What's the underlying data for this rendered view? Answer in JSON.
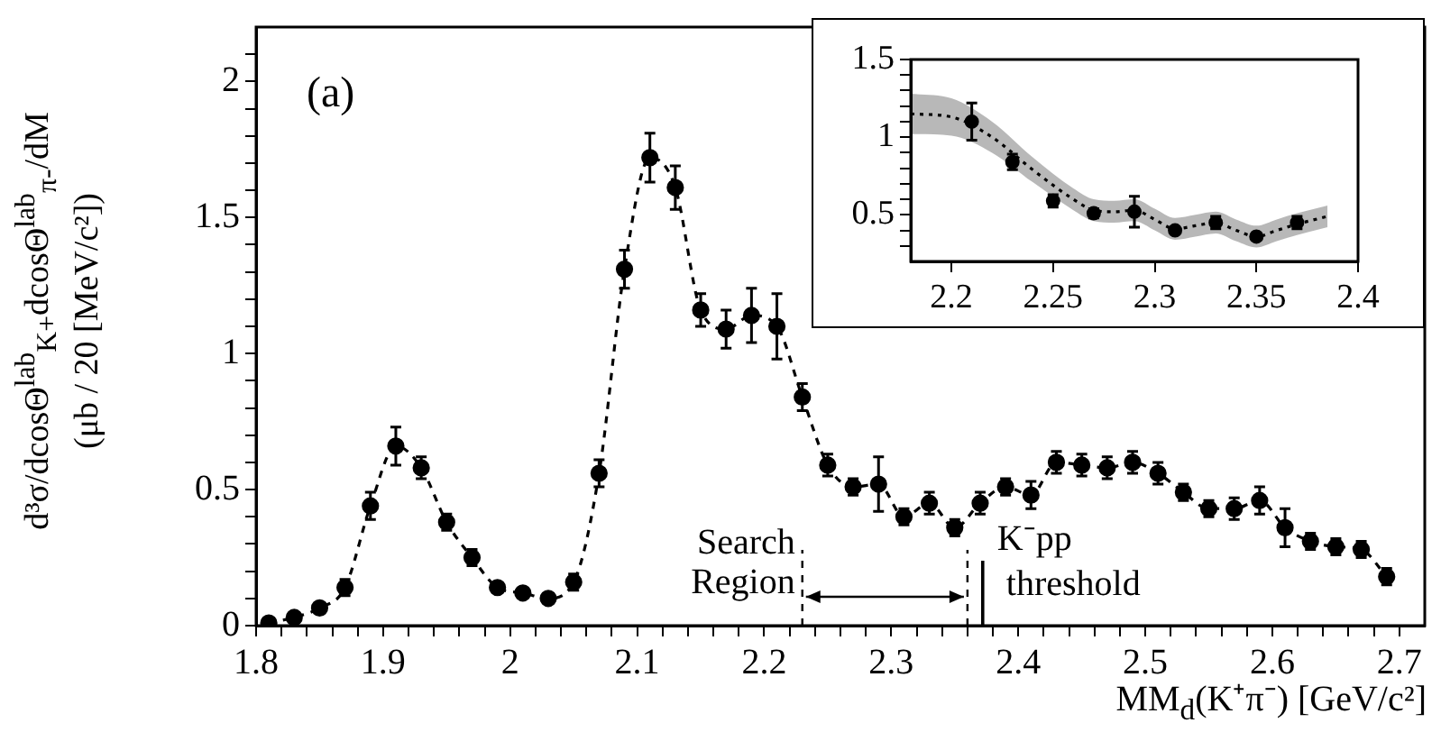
{
  "chart_data": [
    {
      "type": "line",
      "xlabel": "MM$_{d}$(K⁺π⁻) [GeV/c²]",
      "ylabel": "d³σ/dcosΘ$^{lab}$$_{K+}$dcosΘ$^{lab}$$_{π-}$/dM\n(μb / 20 [MeV/c²])",
      "annotations": [
        "(a)",
        "Search\nRegion"
      ],
      "x": [
        1.81,
        1.83,
        1.85,
        1.87,
        1.89,
        1.91,
        1.93,
        1.95,
        1.97,
        1.99,
        2.01,
        2.03,
        2.05,
        2.07,
        2.09,
        2.11,
        2.13,
        2.15,
        2.17,
        2.19,
        2.21,
        2.23,
        2.25,
        2.27,
        2.29,
        2.31,
        2.33,
        2.35,
        2.37,
        2.39,
        2.41,
        2.43,
        2.45,
        2.47,
        2.49,
        2.51,
        2.53,
        2.55,
        2.57,
        2.59,
        2.61,
        2.63,
        2.65,
        2.67,
        2.69
      ],
      "series": [
        {
          "color": "#000000",
          "values": [
            0.01,
            0.03,
            0.065,
            0.14,
            0.44,
            0.66,
            0.58,
            0.38,
            0.25,
            0.14,
            0.12,
            0.1,
            0.16,
            0.56,
            1.31,
            1.72,
            1.61,
            1.16,
            1.09,
            1.14,
            1.1,
            0.84,
            0.59,
            0.51,
            0.52,
            0.4,
            0.45,
            0.36,
            0.45,
            0.51,
            0.48,
            0.6,
            0.59,
            0.58,
            0.6,
            0.56,
            0.49,
            0.43,
            0.43,
            0.46,
            0.36,
            0.31,
            0.29,
            0.28,
            0.18
          ],
          "errors": [
            null,
            null,
            null,
            0.03,
            0.05,
            0.07,
            0.04,
            0.03,
            0.03,
            null,
            null,
            null,
            0.03,
            0.05,
            0.07,
            0.09,
            0.08,
            0.06,
            0.07,
            0.1,
            0.12,
            0.05,
            0.04,
            0.03,
            0.1,
            0.03,
            0.04,
            0.03,
            0.04,
            0.03,
            0.05,
            0.04,
            0.04,
            0.04,
            0.04,
            0.04,
            0.03,
            0.03,
            0.04,
            0.05,
            0.07,
            0.03,
            0.03,
            0.03,
            0.03
          ]
        }
      ],
      "marker": "circle",
      "line_style": "dashed",
      "ref_lines": [
        {
          "axis": "x",
          "value": 2.23,
          "line_style": "dashed"
        },
        {
          "axis": "x",
          "value": 2.36,
          "line_style": "dashed"
        },
        {
          "axis": "x",
          "value": 2.372,
          "label": "K⁻pp\nthreshold",
          "line_style": "solid"
        }
      ],
      "xlim": [
        1.8,
        2.72
      ],
      "ylim": [
        0,
        2.2
      ],
      "xticks": [
        1.8,
        {
          "value": 1.82,
          "label": null
        },
        {
          "value": 1.84,
          "label": null
        },
        {
          "value": 1.86,
          "label": null
        },
        {
          "value": 1.88,
          "label": null
        },
        1.9,
        {
          "value": 1.92,
          "label": null
        },
        {
          "value": 1.94,
          "label": null
        },
        {
          "value": 1.96,
          "label": null
        },
        {
          "value": 1.98,
          "label": null
        },
        2,
        {
          "value": 2.02,
          "label": null
        },
        {
          "value": 2.04,
          "label": null
        },
        {
          "value": 2.06,
          "label": null
        },
        {
          "value": 2.08,
          "label": null
        },
        2.1,
        {
          "value": 2.12,
          "label": null
        },
        {
          "value": 2.14,
          "label": null
        },
        {
          "value": 2.16,
          "label": null
        },
        {
          "value": 2.18,
          "label": null
        },
        2.2,
        {
          "value": 2.22,
          "label": null
        },
        {
          "value": 2.24,
          "label": null
        },
        {
          "value": 2.26,
          "label": null
        },
        {
          "value": 2.28,
          "label": null
        },
        2.3,
        {
          "value": 2.32,
          "label": null
        },
        {
          "value": 2.34,
          "label": null
        },
        {
          "value": 2.36,
          "label": null
        },
        {
          "value": 2.38,
          "label": null
        },
        2.4,
        {
          "value": 2.42,
          "label": null
        },
        {
          "value": 2.44,
          "label": null
        },
        {
          "value": 2.46,
          "label": null
        },
        {
          "value": 2.48,
          "label": null
        },
        2.5,
        {
          "value": 2.52,
          "label": null
        },
        {
          "value": 2.54,
          "label": null
        },
        {
          "value": 2.56,
          "label": null
        },
        {
          "value": 2.58,
          "label": null
        },
        2.6,
        {
          "value": 2.62,
          "label": null
        },
        {
          "value": 2.64,
          "label": null
        },
        {
          "value": 2.66,
          "label": null
        },
        {
          "value": 2.68,
          "label": null
        },
        2.7
      ],
      "yticks": [
        0,
        {
          "value": 0.1,
          "label": null
        },
        {
          "value": 0.2,
          "label": null
        },
        {
          "value": 0.3,
          "label": null
        },
        {
          "value": 0.4,
          "label": null
        },
        0.5,
        {
          "value": 0.6,
          "label": null
        },
        {
          "value": 0.7,
          "label": null
        },
        {
          "value": 0.8,
          "label": null
        },
        {
          "value": 0.9,
          "label": null
        },
        1,
        {
          "value": 1.1,
          "label": null
        },
        {
          "value": 1.2,
          "label": null
        },
        {
          "value": 1.3,
          "label": null
        },
        {
          "value": 1.4,
          "label": null
        },
        1.5,
        {
          "value": 1.6,
          "label": null
        },
        {
          "value": 1.7,
          "label": null
        },
        {
          "value": 1.8,
          "label": null
        },
        {
          "value": 1.9,
          "label": null
        },
        2,
        {
          "value": 2.1,
          "label": null
        }
      ]
    },
    {
      "type": "line",
      "series": [
        {
          "color": "#000000",
          "line_style": "dotted",
          "x": [
            2.18,
            2.2,
            2.22,
            2.24,
            2.26,
            2.27,
            2.28,
            2.29,
            2.3,
            2.31,
            2.32,
            2.33,
            2.34,
            2.35,
            2.36,
            2.37,
            2.385
          ],
          "values": [
            1.15,
            1.13,
            1.0,
            0.79,
            0.6,
            0.53,
            0.52,
            0.53,
            0.47,
            0.41,
            0.43,
            0.45,
            0.4,
            0.36,
            0.4,
            0.44,
            0.49
          ],
          "lower": [
            1.02,
            1.01,
            0.9,
            0.71,
            0.53,
            0.46,
            0.45,
            0.46,
            0.4,
            0.34,
            0.36,
            0.38,
            0.33,
            0.29,
            0.33,
            0.37,
            0.42
          ],
          "upper": [
            1.28,
            1.25,
            1.1,
            0.87,
            0.67,
            0.6,
            0.59,
            0.6,
            0.54,
            0.48,
            0.5,
            0.52,
            0.47,
            0.43,
            0.47,
            0.51,
            0.56
          ]
        },
        {
          "type": "scatter",
          "color": "#000000",
          "marker": "circle",
          "x": [
            2.21,
            2.23,
            2.25,
            2.27,
            2.29,
            2.31,
            2.33,
            2.35,
            2.37
          ],
          "values": [
            1.1,
            0.84,
            0.59,
            0.51,
            0.52,
            0.4,
            0.45,
            0.36,
            0.45
          ],
          "errors": [
            0.12,
            0.05,
            0.04,
            0.03,
            0.1,
            0.02,
            0.04,
            0.02,
            0.04
          ]
        }
      ],
      "xlim": [
        2.18,
        2.4
      ],
      "ylim": [
        0.2,
        1.5
      ],
      "xticks": [
        2.2,
        2.25,
        2.3,
        2.35,
        2.4
      ],
      "yticks": [
        {
          "value": 0.3,
          "label": null
        },
        {
          "value": 0.4,
          "label": null
        },
        0.5,
        {
          "value": 0.6,
          "label": null
        },
        {
          "value": 0.7,
          "label": null
        },
        {
          "value": 0.8,
          "label": null
        },
        {
          "value": 0.9,
          "label": null
        },
        1,
        {
          "value": 1.1,
          "label": null
        },
        {
          "value": 1.2,
          "label": null
        },
        {
          "value": 1.3,
          "label": null
        },
        {
          "value": 1.4,
          "label": null
        },
        1.5
      ]
    }
  ]
}
